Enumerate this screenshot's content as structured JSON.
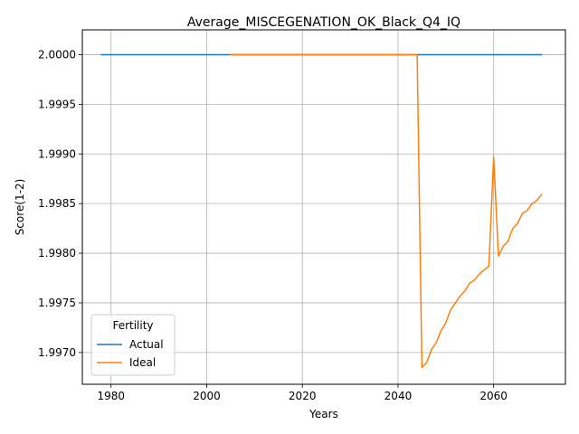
{
  "chart_data": {
    "type": "line",
    "title": "Average_MISCEGENATION_OK_Black_Q4_IQ",
    "xlabel": "Years",
    "ylabel": "Score(1-2)",
    "xlim": [
      1974,
      2075
    ],
    "ylim": [
      1.99668,
      2.00025
    ],
    "x_ticks": [
      1980,
      2000,
      2020,
      2040,
      2060
    ],
    "y_ticks": [
      1.997,
      1.9975,
      1.998,
      1.9985,
      1.999,
      1.9995,
      2.0
    ],
    "y_tick_labels": [
      "1.9970",
      "1.9975",
      "1.9980",
      "1.9985",
      "1.9990",
      "1.9995",
      "2.0000"
    ],
    "grid": true,
    "legend": {
      "title": "Fertility",
      "placement": "lower-left"
    },
    "series": [
      {
        "name": "Actual",
        "color": "#1f77b4",
        "x": [
          1978,
          2070
        ],
        "y": [
          2.0,
          2.0
        ]
      },
      {
        "name": "Ideal",
        "color": "#ff7f0e",
        "x": [
          2005,
          2010,
          2015,
          2020,
          2025,
          2030,
          2035,
          2040,
          2044,
          2045,
          2046,
          2047,
          2048,
          2049,
          2050,
          2051,
          2052,
          2053,
          2054,
          2055,
          2056,
          2057,
          2058,
          2059,
          2060,
          2061,
          2062,
          2063,
          2064,
          2065,
          2066,
          2067,
          2068,
          2069,
          2070
        ],
        "y": [
          2.0,
          2.0,
          2.0,
          2.0,
          2.0,
          2.0,
          2.0,
          2.0,
          2.0,
          1.99685,
          1.9969,
          1.99703,
          1.9971,
          1.99722,
          1.9973,
          1.99743,
          1.9975,
          1.99757,
          1.99762,
          1.9977,
          1.99773,
          1.99779,
          1.99783,
          1.99787,
          1.99897,
          1.99797,
          1.99807,
          1.99812,
          1.99825,
          1.9983,
          1.9984,
          1.99843,
          1.9985,
          1.99853,
          1.99859
        ]
      }
    ]
  }
}
